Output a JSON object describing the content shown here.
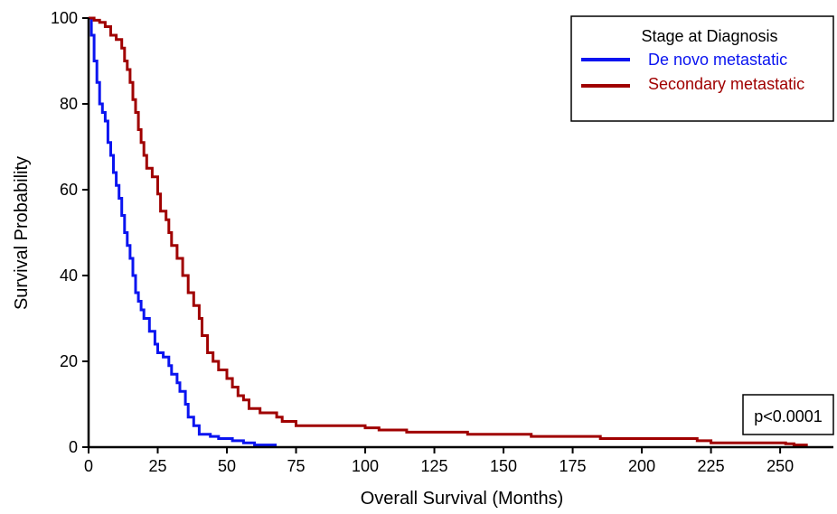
{
  "chart_data": {
    "type": "line",
    "step": true,
    "xlabel": "Overall Survival (Months)",
    "ylabel": "Survival Probability",
    "xlim": [
      0,
      265
    ],
    "ylim": [
      0,
      100
    ],
    "xticks": [
      0,
      25,
      50,
      75,
      100,
      125,
      150,
      175,
      200,
      225,
      250
    ],
    "yticks": [
      0,
      20,
      40,
      60,
      80,
      100
    ],
    "grid": false,
    "legend": {
      "title": "Stage at Diagnosis",
      "placement": "top-right"
    },
    "annotation": "p<0.0001",
    "series": [
      {
        "name": "De novo metastatic",
        "color": "#0a14f0",
        "points": [
          [
            0,
            100
          ],
          [
            1,
            96
          ],
          [
            2,
            90
          ],
          [
            3,
            85
          ],
          [
            4,
            80
          ],
          [
            5,
            78
          ],
          [
            6,
            76
          ],
          [
            7,
            71
          ],
          [
            8,
            68
          ],
          [
            9,
            64
          ],
          [
            10,
            61
          ],
          [
            11,
            58
          ],
          [
            12,
            54
          ],
          [
            13,
            50
          ],
          [
            14,
            47
          ],
          [
            15,
            44
          ],
          [
            16,
            40
          ],
          [
            17,
            36
          ],
          [
            18,
            34
          ],
          [
            19,
            32
          ],
          [
            20,
            30
          ],
          [
            22,
            27
          ],
          [
            24,
            24
          ],
          [
            25,
            22
          ],
          [
            27,
            21
          ],
          [
            29,
            19
          ],
          [
            30,
            17
          ],
          [
            32,
            15
          ],
          [
            33,
            13
          ],
          [
            35,
            10
          ],
          [
            36,
            7
          ],
          [
            38,
            5
          ],
          [
            40,
            3
          ],
          [
            42,
            3
          ],
          [
            44,
            2.5
          ],
          [
            47,
            2
          ],
          [
            52,
            1.5
          ],
          [
            56,
            1
          ],
          [
            60,
            0.5
          ],
          [
            68,
            0.5
          ]
        ]
      },
      {
        "name": "Secondary metastatic",
        "color": "#a00000",
        "points": [
          [
            0,
            100
          ],
          [
            2,
            99.5
          ],
          [
            4,
            99
          ],
          [
            6,
            98
          ],
          [
            8,
            96
          ],
          [
            10,
            95
          ],
          [
            12,
            93
          ],
          [
            13,
            90
          ],
          [
            14,
            88
          ],
          [
            15,
            85
          ],
          [
            16,
            81
          ],
          [
            17,
            78
          ],
          [
            18,
            74
          ],
          [
            19,
            71
          ],
          [
            20,
            68
          ],
          [
            21,
            65
          ],
          [
            23,
            63
          ],
          [
            25,
            59
          ],
          [
            26,
            55
          ],
          [
            28,
            53
          ],
          [
            29,
            50
          ],
          [
            30,
            47
          ],
          [
            32,
            44
          ],
          [
            34,
            40
          ],
          [
            36,
            36
          ],
          [
            38,
            33
          ],
          [
            40,
            30
          ],
          [
            41,
            26
          ],
          [
            43,
            22
          ],
          [
            45,
            20
          ],
          [
            47,
            18
          ],
          [
            50,
            16
          ],
          [
            52,
            14
          ],
          [
            54,
            12
          ],
          [
            56,
            11
          ],
          [
            58,
            9
          ],
          [
            62,
            8
          ],
          [
            68,
            7
          ],
          [
            70,
            6
          ],
          [
            75,
            5
          ],
          [
            90,
            5
          ],
          [
            100,
            4.5
          ],
          [
            105,
            4
          ],
          [
            115,
            3.5
          ],
          [
            125,
            3.5
          ],
          [
            137,
            3
          ],
          [
            155,
            3
          ],
          [
            160,
            2.5
          ],
          [
            185,
            2
          ],
          [
            200,
            2
          ],
          [
            220,
            1.5
          ],
          [
            225,
            1
          ],
          [
            245,
            1
          ],
          [
            252,
            0.8
          ],
          [
            255,
            0.5
          ],
          [
            260,
            0.5
          ]
        ]
      }
    ]
  }
}
